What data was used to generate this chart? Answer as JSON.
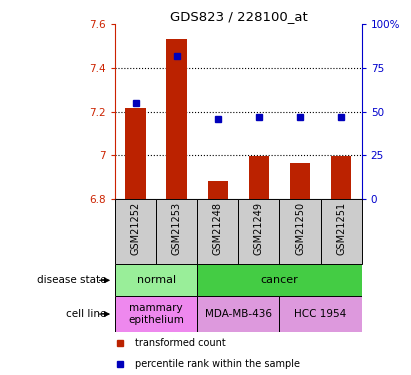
{
  "title": "GDS823 / 228100_at",
  "samples": [
    "GSM21252",
    "GSM21253",
    "GSM21248",
    "GSM21249",
    "GSM21250",
    "GSM21251"
  ],
  "bar_values": [
    7.215,
    7.535,
    6.88,
    6.995,
    6.965,
    6.995
  ],
  "bar_base": 6.8,
  "percentile_values": [
    55,
    82,
    46,
    47,
    47,
    47
  ],
  "ylim_left": [
    6.8,
    7.6
  ],
  "ylim_right": [
    0,
    100
  ],
  "yticks_left": [
    6.8,
    7.0,
    7.2,
    7.4,
    7.6
  ],
  "ytick_labels_left": [
    "6.8",
    "7",
    "7.2",
    "7.4",
    "7.6"
  ],
  "yticks_right": [
    0,
    25,
    50,
    75,
    100
  ],
  "ytick_labels_right": [
    "0",
    "25",
    "50",
    "75",
    "100%"
  ],
  "bar_color": "#bb2200",
  "marker_color": "#0000bb",
  "bg_color": "#ffffff",
  "disease_state_groups": [
    {
      "label": "normal",
      "start": 0,
      "end": 1,
      "color": "#99ee99"
    },
    {
      "label": "cancer",
      "start": 2,
      "end": 5,
      "color": "#44cc44"
    }
  ],
  "cell_line_groups": [
    {
      "label": "mammary\nepithelium",
      "start": 0,
      "end": 1,
      "color": "#ee88ee"
    },
    {
      "label": "MDA-MB-436",
      "start": 2,
      "end": 3,
      "color": "#dd99dd"
    },
    {
      "label": "HCC 1954",
      "start": 4,
      "end": 5,
      "color": "#dd99dd"
    }
  ],
  "legend_items": [
    {
      "label": "transformed count",
      "color": "#bb2200"
    },
    {
      "label": "percentile rank within the sample",
      "color": "#0000bb"
    }
  ],
  "left_axis_color": "#cc2200",
  "right_axis_color": "#0000cc",
  "row_label_disease": "disease state",
  "row_label_cell": "cell line",
  "xlabel_gray": "#cccccc",
  "dotted_yticks": [
    7.0,
    7.2,
    7.4
  ]
}
